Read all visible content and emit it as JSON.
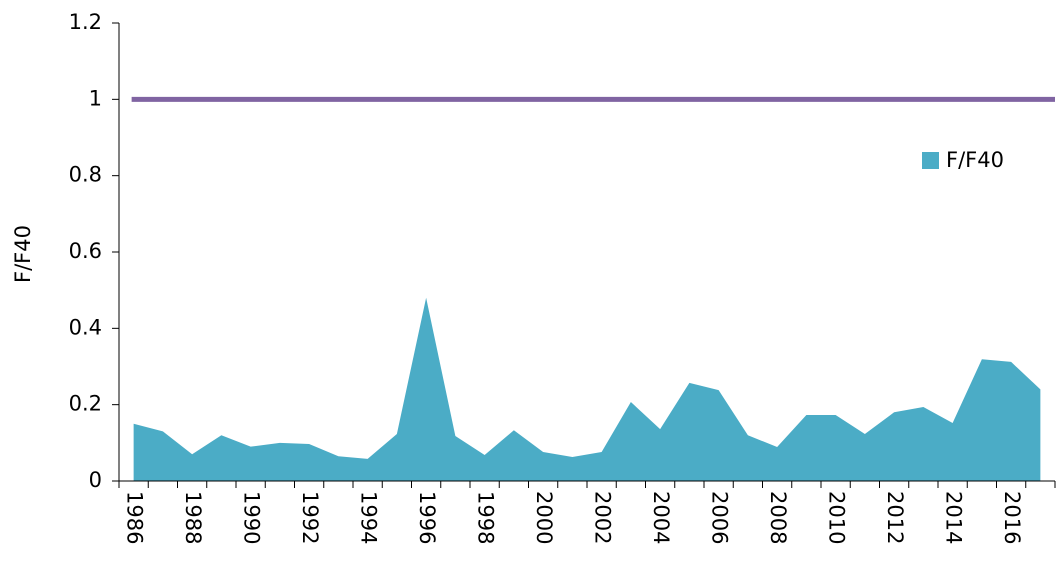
{
  "chart_data": {
    "type": "area",
    "y_label": "F/F40",
    "categories": [
      "1986",
      null,
      "1988",
      null,
      "1990",
      null,
      "1992",
      null,
      "1994",
      null,
      "1996",
      null,
      "1998",
      null,
      "2000",
      null,
      "2002",
      null,
      "2004",
      null,
      "2006",
      null,
      "2008",
      null,
      "2010",
      null,
      "2012",
      null,
      "2014",
      null,
      "2016",
      null
    ],
    "series": [
      {
        "name": "F/F40",
        "color": "#4bacc6",
        "values": [
          0.15,
          0.13,
          0.07,
          0.12,
          0.09,
          0.1,
          0.097,
          0.065,
          0.058,
          0.123,
          0.48,
          0.118,
          0.068,
          0.133,
          0.076,
          0.063,
          0.076,
          0.207,
          0.136,
          0.257,
          0.238,
          0.12,
          0.089,
          0.173,
          0.173,
          0.123,
          0.18,
          0.194,
          0.152,
          0.319,
          0.312,
          0.24
        ]
      }
    ],
    "reference_line": {
      "value": 1,
      "color": "#8064a2"
    },
    "ylim": [
      0,
      1.2
    ],
    "yticks": [
      0,
      0.2,
      0.4,
      0.6,
      0.8,
      1,
      1.2
    ],
    "legend": "right"
  }
}
